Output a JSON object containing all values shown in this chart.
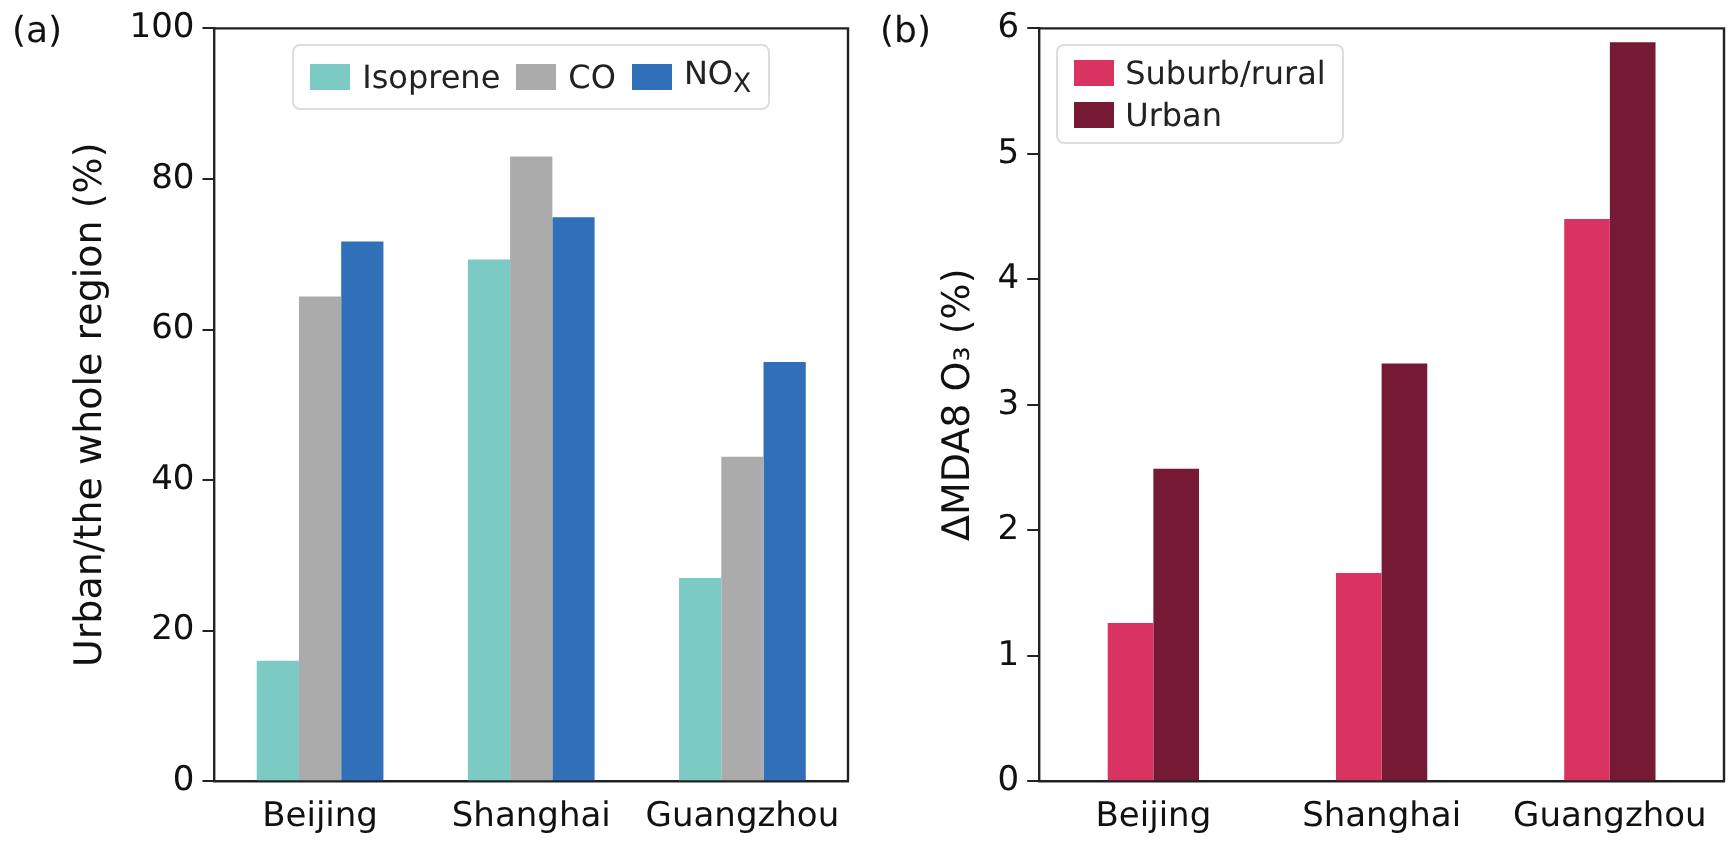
{
  "chart_data": [
    {
      "type": "bar",
      "title": "(a)",
      "ylabel": "Urban/the whole region (%)",
      "categories": [
        "Beijing",
        "Shanghai",
        "Guangzhou"
      ],
      "series": [
        {
          "name": "Isoprene",
          "color": "#7ccac4",
          "values": [
            16,
            69.3,
            27
          ]
        },
        {
          "name": "CO",
          "color": "#ababab",
          "values": [
            64.4,
            83,
            43.1
          ]
        },
        {
          "name": "NO$_{X}$",
          "color": "#3070b8",
          "values": [
            71.7,
            74.9,
            55.7
          ]
        }
      ],
      "ylim": [
        0,
        100
      ],
      "yticks": [
        0,
        20,
        40,
        60,
        80,
        100
      ],
      "grid": false,
      "legend": "top"
    },
    {
      "type": "bar",
      "title": "(b)",
      "ylabel": "ΔMDA8 O₃ (%)",
      "categories": [
        "Beijing",
        "Shanghai",
        "Guangzhou"
      ],
      "series": [
        {
          "name": "Suburb/rural",
          "color": "#d93361",
          "values": [
            1.26,
            1.66,
            4.48
          ]
        },
        {
          "name": "Urban",
          "color": "#761935",
          "values": [
            2.49,
            3.33,
            5.89
          ]
        }
      ],
      "ylim": [
        0,
        6
      ],
      "yticks": [
        0,
        1,
        2,
        3,
        4,
        5,
        6
      ],
      "grid": false,
      "legend": "top left"
    }
  ]
}
